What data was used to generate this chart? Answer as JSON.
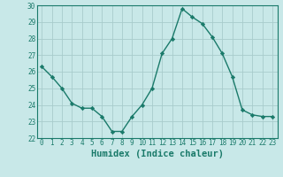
{
  "x": [
    0,
    1,
    2,
    3,
    4,
    5,
    6,
    7,
    8,
    9,
    10,
    11,
    12,
    13,
    14,
    15,
    16,
    17,
    18,
    19,
    20,
    21,
    22,
    23
  ],
  "y": [
    26.3,
    25.7,
    25.0,
    24.1,
    23.8,
    23.8,
    23.3,
    22.4,
    22.4,
    23.3,
    24.0,
    25.0,
    27.1,
    28.0,
    29.8,
    29.3,
    28.9,
    28.1,
    27.1,
    25.7,
    23.7,
    23.4,
    23.3,
    23.3
  ],
  "line_color": "#1a7a6a",
  "marker": "D",
  "marker_size": 2.2,
  "bg_color": "#c8e8e8",
  "grid_color": "#a8cccc",
  "xlabel": "Humidex (Indice chaleur)",
  "ylim": [
    22,
    30
  ],
  "xlim": [
    -0.5,
    23.5
  ],
  "yticks": [
    22,
    23,
    24,
    25,
    26,
    27,
    28,
    29,
    30
  ],
  "xticks": [
    0,
    1,
    2,
    3,
    4,
    5,
    6,
    7,
    8,
    9,
    10,
    11,
    12,
    13,
    14,
    15,
    16,
    17,
    18,
    19,
    20,
    21,
    22,
    23
  ],
  "tick_fontsize": 5.5,
  "xlabel_fontsize": 7.5,
  "tick_color": "#1a7a6a",
  "spine_color": "#1a7a6a",
  "linewidth": 1.0
}
